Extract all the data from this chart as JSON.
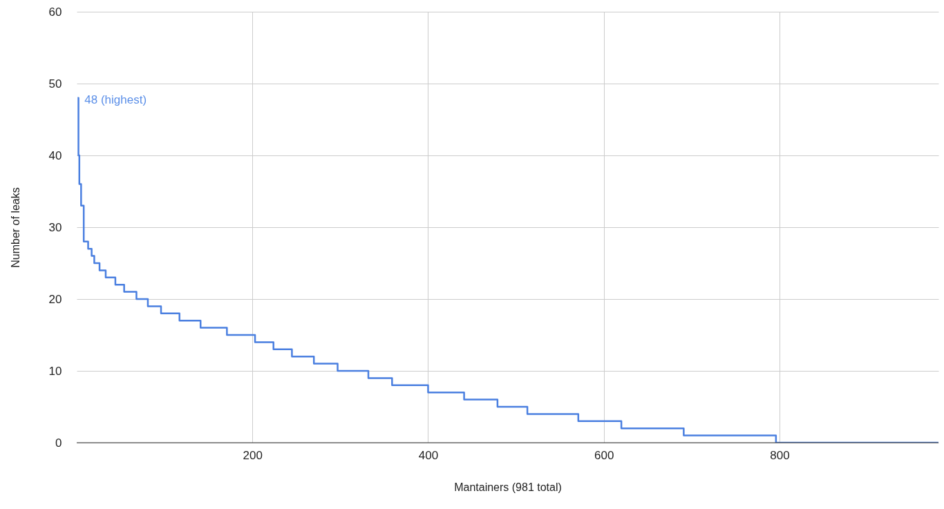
{
  "chart_data": {
    "type": "step",
    "xlabel": "Mantainers (981 total)",
    "ylabel": "Number of leaks",
    "x": [
      1,
      2,
      3,
      5,
      8,
      13,
      17,
      20,
      26,
      33,
      44,
      54,
      68,
      81,
      96,
      117,
      141,
      171,
      203,
      224,
      245,
      270,
      297,
      332,
      359,
      400,
      441,
      479,
      513,
      571,
      620,
      691,
      796,
      981
    ],
    "series": [
      {
        "color": "#4a7fe0",
        "values": [
          48,
          40,
          36,
          33,
          28,
          27,
          26,
          25,
          24,
          23,
          22,
          21,
          20,
          19,
          18,
          17,
          16,
          15,
          14,
          13,
          12,
          11,
          10,
          9,
          8,
          7,
          6,
          5,
          4,
          3,
          2,
          1,
          0,
          0
        ]
      }
    ],
    "xlim": [
      0,
      981
    ],
    "xticks": [
      200,
      400,
      600,
      800
    ],
    "ylim": [
      0,
      60
    ],
    "yticks": [
      0,
      10,
      20,
      30,
      40,
      50,
      60
    ],
    "grid": true,
    "annotations": [
      {
        "text": "48 (highest)",
        "x": 1,
        "y": 48
      }
    ],
    "line_style": "solid",
    "marker": "none"
  }
}
